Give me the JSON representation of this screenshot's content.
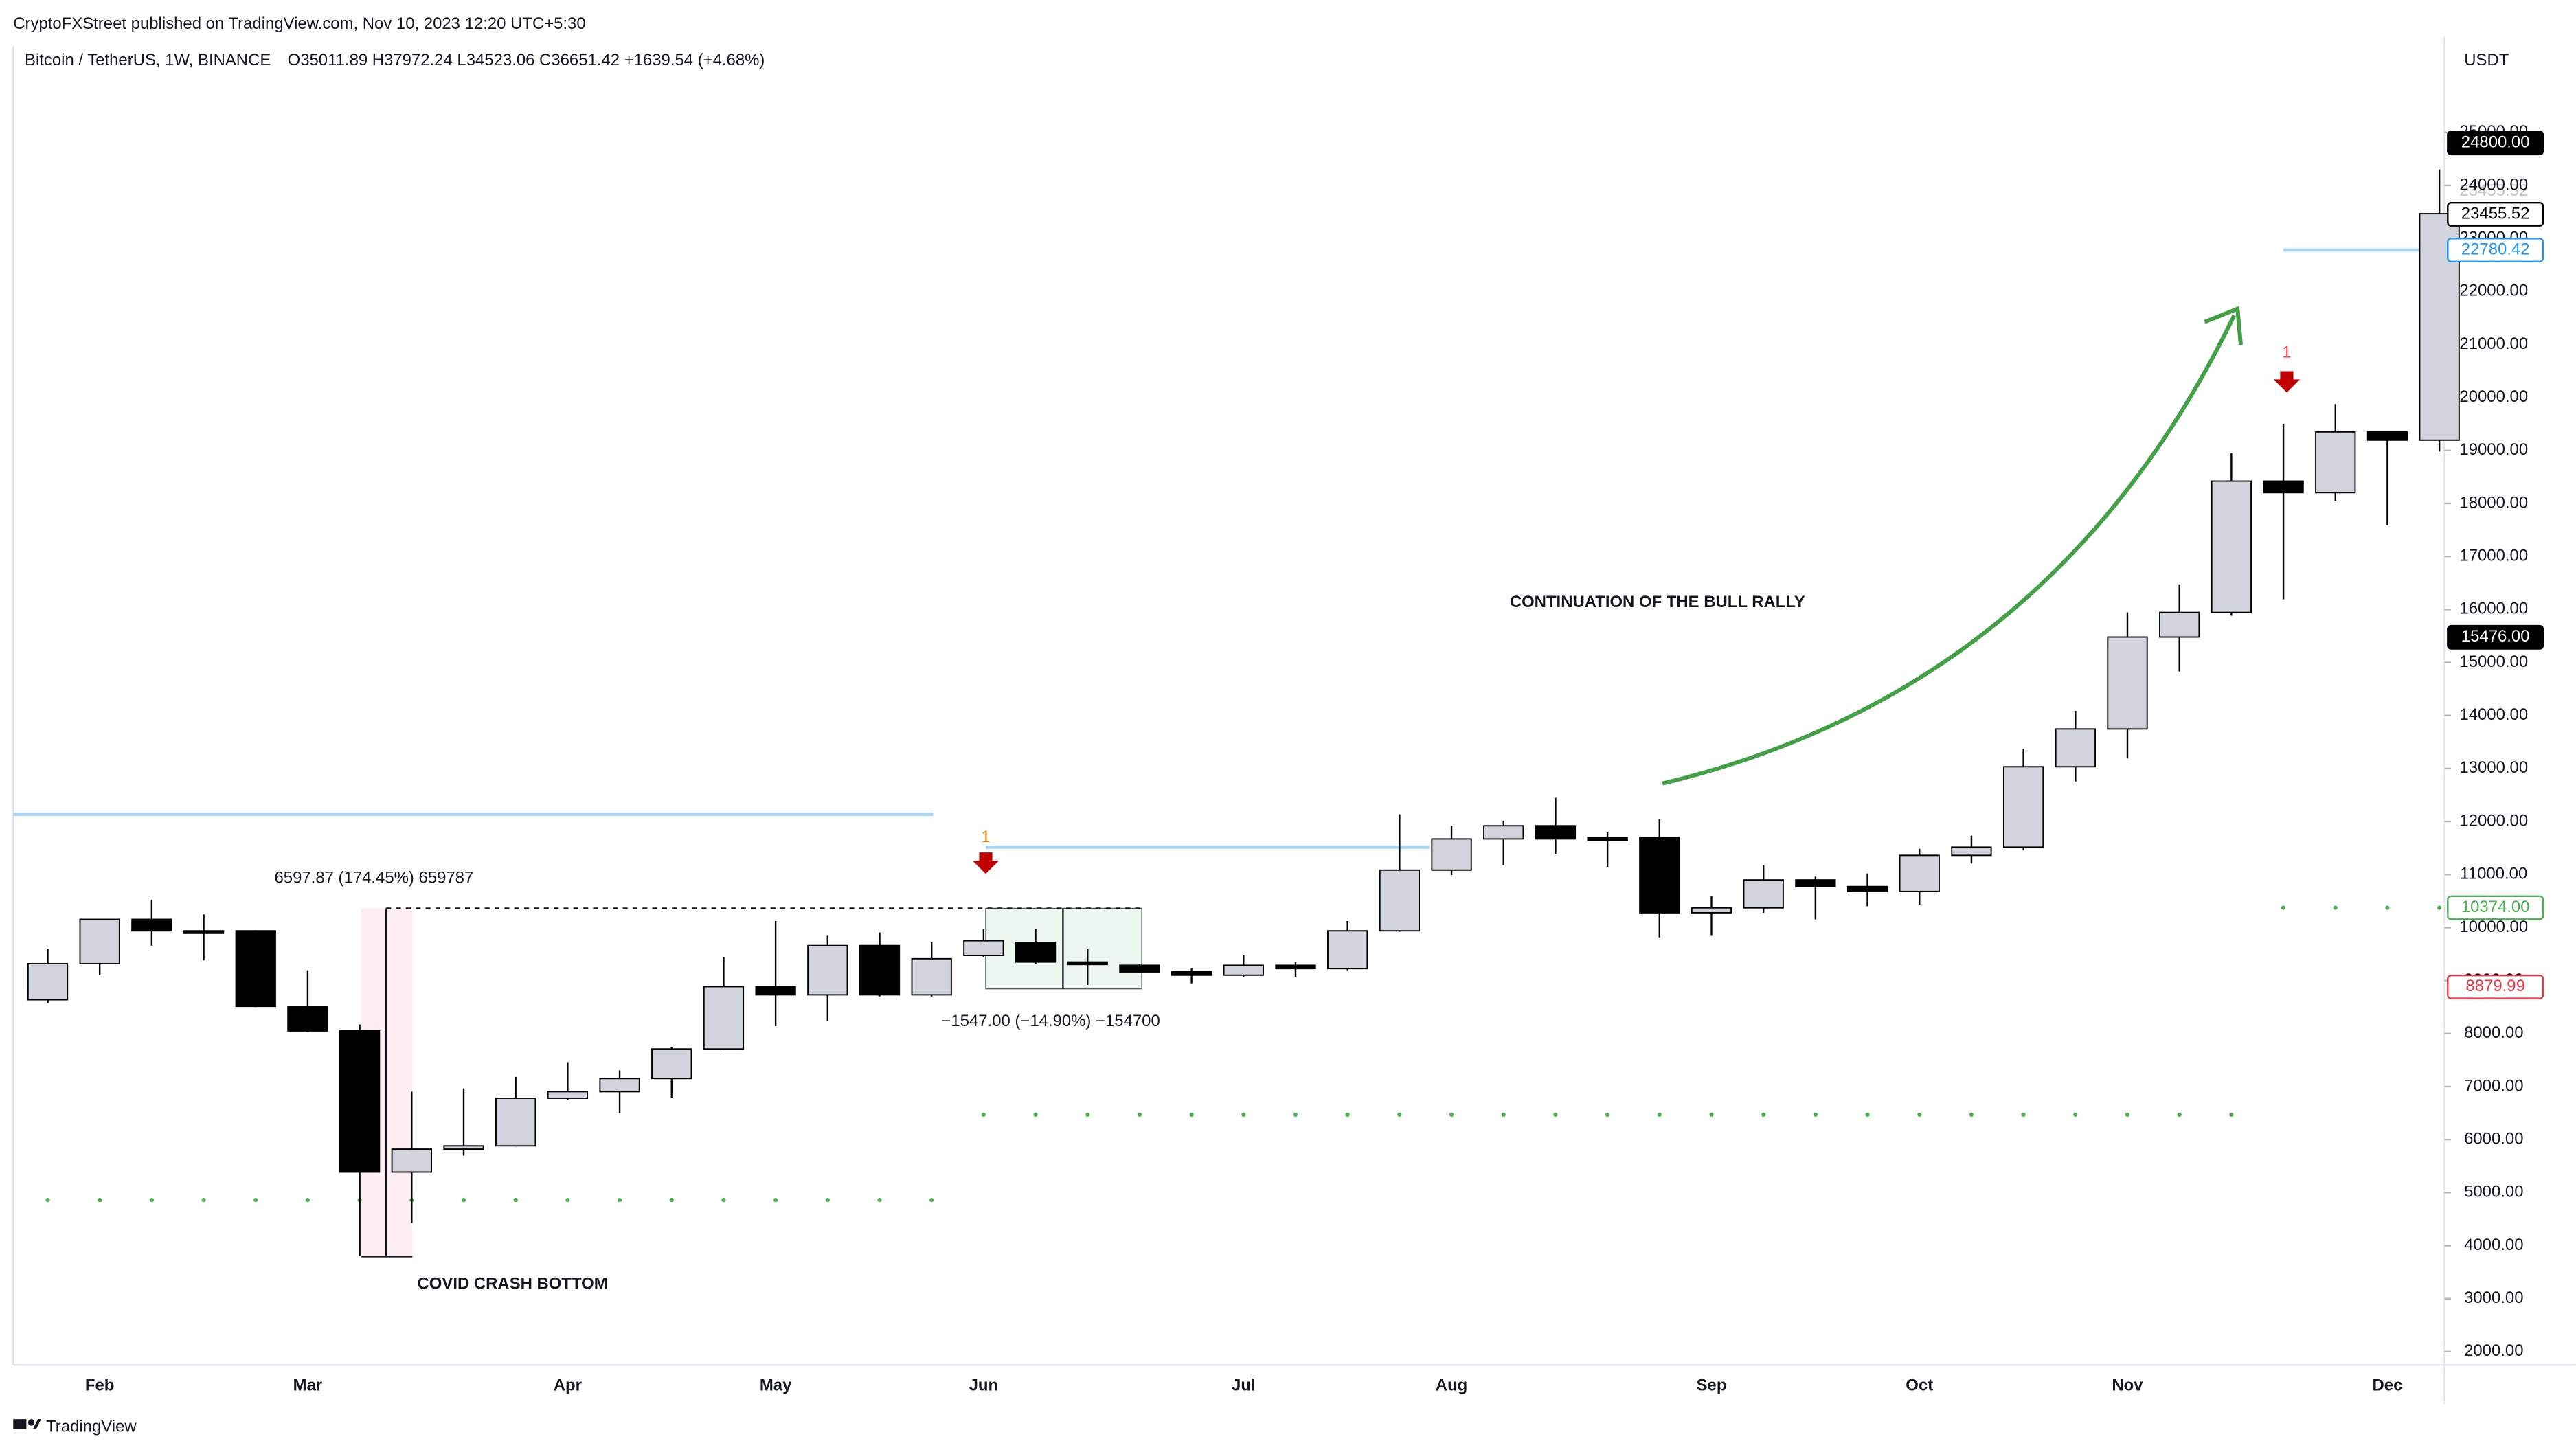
{
  "header": {
    "publisher": "CryptoFXStreet published on TradingView.com, Nov 10, 2023 12:20 UTC+5:30",
    "footer": "TradingView"
  },
  "chart_data": {
    "type": "candlestick",
    "title": "Bitcoin / TetherUS, 1W, BINANCE",
    "ohlc_text": "O35011.89  H37972.24  L34523.06  C36651.42  +1639.54 (+4.68%)",
    "currency": "USDT",
    "categories": [
      null,
      "Feb",
      null,
      null,
      null,
      "Mar",
      null,
      null,
      null,
      null,
      "Apr",
      null,
      null,
      null,
      "May",
      null,
      null,
      null,
      "Jun",
      null,
      null,
      null,
      null,
      "Jul",
      null,
      null,
      null,
      "Aug",
      null,
      null,
      null,
      null,
      "Sep",
      null,
      null,
      null,
      "Oct",
      null,
      null,
      null,
      "Nov",
      null,
      null,
      null,
      null,
      "Dec",
      null
    ],
    "open": [
      8638,
      9319,
      10155,
      9938,
      9938,
      8514,
      8050,
      5387,
      5820,
      5882,
      6780,
      6904,
      7152,
      7709,
      8885,
      8731,
      9660,
      8731,
      9474,
      9721,
      9350,
      9288,
      9164,
      9102,
      9288,
      9226,
      9938,
      11084,
      11672,
      11920,
      11703,
      11703,
      10279,
      10372,
      10898,
      10774,
      10681,
      11362,
      11517,
      13034,
      13746,
      15480,
      15945,
      18421,
      18204,
      19350,
      19195
    ],
    "high": [
      9598,
      10155,
      10526,
      10248,
      9950,
      9195,
      8173,
      6904,
      6966,
      7183,
      7461,
      7306,
      7740,
      9443,
      10124,
      9845,
      9907,
      9721,
      9969,
      9969,
      9598,
      9319,
      9226,
      9474,
      9350,
      10124,
      12136,
      11920,
      12012,
      12446,
      11796,
      12043,
      10588,
      11177,
      10960,
      11022,
      11486,
      11734,
      13375,
      14087,
      15945,
      16471,
      18947,
      19505,
      19876,
      19350,
      24303
    ],
    "low": [
      8576,
      9102,
      9660,
      9381,
      8500,
      8030,
      3808,
      4427,
      5697,
      5870,
      6750,
      6500,
      6780,
      7690,
      8142,
      8235,
      8700,
      8700,
      9443,
      9319,
      8917,
      9140,
      8948,
      9070,
      9070,
      9195,
      9920,
      10990,
      11177,
      11393,
      11146,
      9814,
      9845,
      10279,
      10155,
      10403,
      10434,
      11208,
      11455,
      12755,
      13189,
      14830,
      15882,
      16192,
      18050,
      17585,
      18978
    ],
    "close": [
      9319,
      10155,
      9938,
      9920,
      8514,
      8050,
      5387,
      5820,
      5882,
      6780,
      6904,
      7152,
      7709,
      8885,
      8731,
      9660,
      8731,
      9412,
      9752,
      9350,
      9319,
      9164,
      9102,
      9288,
      9226,
      9938,
      11084,
      11672,
      11920,
      11672,
      11641,
      10279,
      10372,
      10898,
      10774,
      10681,
      11362,
      11517,
      13034,
      13746,
      15480,
      15945,
      18421,
      18204,
      19350,
      19195,
      23467
    ],
    "up_color": "#d1d4dc",
    "down_color": "#000000",
    "ylim": [
      1780,
      26630
    ],
    "yticks": [
      {
        "value": 2000,
        "label": "2000.00"
      },
      {
        "value": 3000,
        "label": "3000.00"
      },
      {
        "value": 4000,
        "label": "4000.00"
      },
      {
        "value": 5000,
        "label": "5000.00"
      },
      {
        "value": 6000,
        "label": "6000.00"
      },
      {
        "value": 7000,
        "label": "7000.00"
      },
      {
        "value": 8000,
        "label": "8000.00"
      },
      {
        "value": 9000,
        "label": "9000.00"
      },
      {
        "value": 10000,
        "label": "10000.00"
      },
      {
        "value": 11000,
        "label": "11000.00"
      },
      {
        "value": 12000,
        "label": "12000.00"
      },
      {
        "value": 13000,
        "label": "13000.00"
      },
      {
        "value": 14000,
        "label": "14000.00"
      },
      {
        "value": 15000,
        "label": "15000.00"
      },
      {
        "value": 16000,
        "label": "16000.00"
      },
      {
        "value": 17000,
        "label": "17000.00"
      },
      {
        "value": 18000,
        "label": "18000.00"
      },
      {
        "value": 19000,
        "label": "19000.00"
      },
      {
        "value": 20000,
        "label": "20000.00"
      },
      {
        "value": 21000,
        "label": "21000.00"
      },
      {
        "value": 22000,
        "label": "22000.00"
      },
      {
        "value": 23000,
        "label": "23000.00"
      },
      {
        "value": 24000,
        "label": "24000.00"
      },
      {
        "value": 25000,
        "label": "25000.00"
      }
    ],
    "price_labels": [
      {
        "value": 24800,
        "label": "24800.00",
        "color": "#000000"
      },
      {
        "value": 23455.52,
        "label": "23455.52",
        "color": "#ffffff"
      },
      {
        "value": 22780.42,
        "label": "22780.42",
        "color": "#2196f3"
      },
      {
        "value": 15476,
        "label": "15476.00",
        "color": "#000000"
      },
      {
        "value": 10374,
        "label": "10374.00",
        "color": "#4caf50"
      },
      {
        "value": 8879.99,
        "label": "8879.99",
        "color": "#f23645"
      }
    ],
    "levels": [
      12136,
      11517,
      22780.42
    ],
    "level_color": "#a8d4f0",
    "dot_levels": [
      4860,
      6470,
      10374
    ],
    "dot_color": "#4caf50",
    "annotations": {
      "covid": "COVID CRASH BOTTOM",
      "bull": "CONTINUATION OF THE BULL RALLY",
      "measure_up": "6597.87 (174.45%) 659787",
      "measure_down": "−1547.00 (−14.90%) −154700",
      "signal": "1"
    }
  }
}
